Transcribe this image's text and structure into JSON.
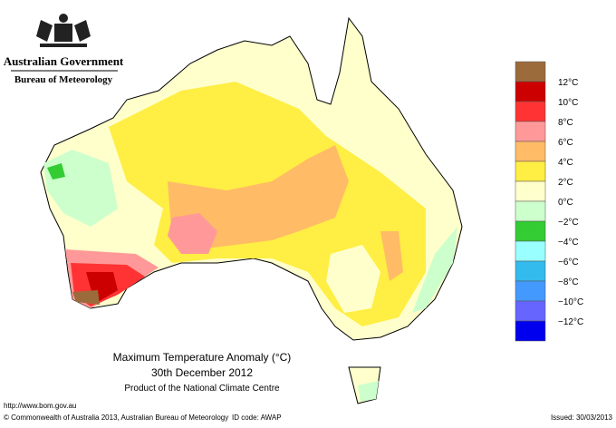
{
  "header": {
    "government": "Australian Government",
    "bureau": "Bureau of Meteorology"
  },
  "map": {
    "title": "Maximum Temperature Anomaly (°C)",
    "date": "30th December 2012",
    "product": "Product of the National Climate Centre"
  },
  "legend": {
    "labels": [
      "12°C",
      "10°C",
      "8°C",
      "6°C",
      "4°C",
      "2°C",
      "0°C",
      "−2°C",
      "−4°C",
      "−6°C",
      "−8°C",
      "−10°C",
      "−12°C"
    ],
    "colors": [
      "#9c6b3c",
      "#cc0000",
      "#ff3333",
      "#ff9999",
      "#ffbb66",
      "#ffee44",
      "#ffffcc",
      "#ccffcc",
      "#33cc33",
      "#99ffff",
      "#33bbee",
      "#4499ff",
      "#6666ff",
      "#0000ee"
    ]
  },
  "footer": {
    "url": "http://www.bom.gov.au",
    "copyright": "© Commonwealth of Australia 2013, Australian Bureau of Meteorology",
    "id_code": "ID code: AWAP",
    "issued": "Issued: 30/03/2013"
  }
}
